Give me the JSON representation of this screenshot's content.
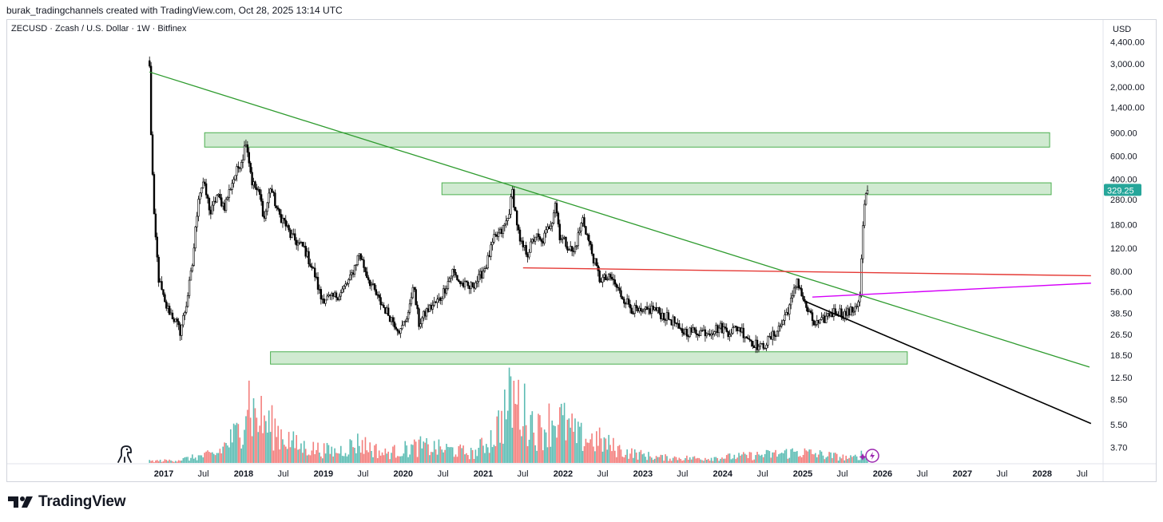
{
  "header": {
    "credit": "burak_tradingchannels created with TradingView.com, Oct 28, 2025 13:14 UTC"
  },
  "symbol": {
    "description": "ZECUSD · Zcash / U.S. Dollar · 1W · Bitfinex"
  },
  "branding": {
    "logo_text": "TradingView"
  },
  "colors": {
    "up": "#26a69a",
    "down": "#ef5350",
    "candle": "#000000",
    "zone_fill": "#c8e6c9",
    "zone_stroke": "#4caf50",
    "downtrend_line": "#2e9b2e",
    "support_line": "#e53935",
    "magenta_line": "#d500f9",
    "black_line": "#000000",
    "last_price_bg": "#26a69a",
    "grid": "#f0f3fa"
  },
  "chart_data": {
    "type": "candlestick",
    "symbol": "ZECUSD",
    "timeframe": "1W",
    "exchange": "Bitfinex",
    "currency": "USD",
    "scale": "log",
    "grid": false,
    "last_price": "329.25",
    "y_tick_labels": [
      "4,400.00",
      "3,000.00",
      "2,000.00",
      "1,400.00",
      "900.00",
      "600.00",
      "400.00",
      "280.00",
      "180.00",
      "120.00",
      "80.00",
      "56.00",
      "38.50",
      "26.50",
      "18.50",
      "12.50",
      "8.50",
      "5.50",
      "3.70"
    ],
    "x_tick_labels": [
      "2017",
      "Jul",
      "2018",
      "Jul",
      "2019",
      "Jul",
      "2020",
      "Jul",
      "2021",
      "Jul",
      "2022",
      "Jul",
      "2023",
      "Jul",
      "2024",
      "Jul",
      "2025",
      "Jul",
      "2026",
      "Jul",
      "2027",
      "Jul",
      "2028",
      "Jul"
    ],
    "x_ticks": [
      "2017-01",
      "2017-07",
      "2018-01",
      "2018-07",
      "2019-01",
      "2019-07",
      "2020-01",
      "2020-07",
      "2021-01",
      "2021-07",
      "2022-01",
      "2022-07",
      "2023-01",
      "2023-07",
      "2024-01",
      "2024-07",
      "2025-01",
      "2025-07",
      "2026-01",
      "2026-07",
      "2027-01",
      "2027-07",
      "2028-01",
      "2028-07"
    ],
    "price_path": [
      [
        "2016-10-28",
        2800
      ],
      [
        "2016-11-04",
        900
      ],
      [
        "2016-11-18",
        200
      ],
      [
        "2016-12-09",
        70
      ],
      [
        "2017-01-06",
        45
      ],
      [
        "2017-02-17",
        35
      ],
      [
        "2017-03-17",
        28
      ],
      [
        "2017-04-14",
        45
      ],
      [
        "2017-05-12",
        90
      ],
      [
        "2017-06-09",
        300
      ],
      [
        "2017-06-30",
        380
      ],
      [
        "2017-08-04",
        220
      ],
      [
        "2017-09-01",
        300
      ],
      [
        "2017-10-06",
        250
      ],
      [
        "2017-11-10",
        380
      ],
      [
        "2017-12-29",
        600
      ],
      [
        "2018-01-12",
        800
      ],
      [
        "2018-02-09",
        380
      ],
      [
        "2018-03-16",
        300
      ],
      [
        "2018-04-06",
        200
      ],
      [
        "2018-05-04",
        350
      ],
      [
        "2018-06-08",
        220
      ],
      [
        "2018-07-06",
        190
      ],
      [
        "2018-08-03",
        150
      ],
      [
        "2018-09-07",
        130
      ],
      [
        "2018-10-05",
        120
      ],
      [
        "2018-11-23",
        75
      ],
      [
        "2018-12-21",
        50
      ],
      [
        "2019-02-08",
        50
      ],
      [
        "2019-03-22",
        55
      ],
      [
        "2019-05-03",
        70
      ],
      [
        "2019-06-14",
        110
      ],
      [
        "2019-07-19",
        75
      ],
      [
        "2019-09-06",
        50
      ],
      [
        "2019-11-08",
        35
      ],
      [
        "2019-12-20",
        28
      ],
      [
        "2020-01-31",
        42
      ],
      [
        "2020-02-14",
        65
      ],
      [
        "2020-03-13",
        32
      ],
      [
        "2020-04-17",
        40
      ],
      [
        "2020-05-22",
        45
      ],
      [
        "2020-06-19",
        50
      ],
      [
        "2020-08-14",
        80
      ],
      [
        "2020-09-18",
        65
      ],
      [
        "2020-10-30",
        60
      ],
      [
        "2020-12-11",
        70
      ],
      [
        "2021-01-15",
        90
      ],
      [
        "2021-02-19",
        140
      ],
      [
        "2021-03-26",
        160
      ],
      [
        "2021-04-23",
        200
      ],
      [
        "2021-05-14",
        320
      ],
      [
        "2021-06-18",
        130
      ],
      [
        "2021-07-23",
        110
      ],
      [
        "2021-08-27",
        150
      ],
      [
        "2021-09-24",
        130
      ],
      [
        "2021-11-12",
        200
      ],
      [
        "2021-11-26",
        270
      ],
      [
        "2021-12-17",
        150
      ],
      [
        "2022-02-18",
        110
      ],
      [
        "2022-04-01",
        200
      ],
      [
        "2022-05-13",
        110
      ],
      [
        "2022-06-17",
        70
      ],
      [
        "2022-08-12",
        70
      ],
      [
        "2022-09-16",
        55
      ],
      [
        "2022-11-11",
        42
      ],
      [
        "2022-12-23",
        38
      ],
      [
        "2023-02-17",
        42
      ],
      [
        "2023-03-24",
        38
      ],
      [
        "2023-05-26",
        33
      ],
      [
        "2023-06-16",
        28
      ],
      [
        "2023-08-25",
        28
      ],
      [
        "2023-10-27",
        28
      ],
      [
        "2023-12-22",
        30
      ],
      [
        "2024-01-26",
        28
      ],
      [
        "2024-03-15",
        30
      ],
      [
        "2024-04-26",
        25
      ],
      [
        "2024-06-21",
        21
      ],
      [
        "2024-08-09",
        25
      ],
      [
        "2024-09-27",
        32
      ],
      [
        "2024-11-15",
        50
      ],
      [
        "2024-12-06",
        70
      ],
      [
        "2025-01-10",
        45
      ],
      [
        "2025-02-21",
        32
      ],
      [
        "2025-03-21",
        32
      ],
      [
        "2025-05-02",
        38
      ],
      [
        "2025-06-06",
        40
      ],
      [
        "2025-07-11",
        38
      ],
      [
        "2025-08-15",
        40
      ],
      [
        "2025-09-19",
        50
      ],
      [
        "2025-09-26",
        100
      ],
      [
        "2025-10-03",
        170
      ],
      [
        "2025-10-10",
        250
      ],
      [
        "2025-10-17",
        300
      ],
      [
        "2025-10-24",
        329.25
      ]
    ],
    "volume_path": [
      [
        "2016-10-28",
        2
      ],
      [
        "2017-03-03",
        3
      ],
      [
        "2017-09-01",
        10
      ],
      [
        "2017-12-15",
        35
      ],
      [
        "2018-01-19",
        80
      ],
      [
        "2018-02-09",
        55
      ],
      [
        "2018-06-01",
        35
      ],
      [
        "2018-09-07",
        18
      ],
      [
        "2019-03-01",
        12
      ],
      [
        "2019-06-14",
        22
      ],
      [
        "2019-10-04",
        10
      ],
      [
        "2020-03-13",
        18
      ],
      [
        "2020-08-14",
        14
      ],
      [
        "2020-11-20",
        10
      ],
      [
        "2021-02-19",
        30
      ],
      [
        "2021-05-14",
        72
      ],
      [
        "2021-09-10",
        35
      ],
      [
        "2021-12-03",
        50
      ],
      [
        "2022-03-11",
        28
      ],
      [
        "2022-06-17",
        24
      ],
      [
        "2022-10-07",
        12
      ],
      [
        "2023-03-10",
        6
      ],
      [
        "2023-09-15",
        5
      ],
      [
        "2024-03-15",
        7
      ],
      [
        "2024-09-20",
        10
      ],
      [
        "2024-12-06",
        12
      ],
      [
        "2025-05-02",
        8
      ],
      [
        "2025-08-15",
        5
      ],
      [
        "2025-09-26",
        9
      ],
      [
        "2025-10-24",
        6
      ]
    ],
    "zones": [
      {
        "x": [
          "2017-07-07",
          "2028-02-04"
        ],
        "y": [
          700,
          900
        ]
      },
      {
        "x": [
          "2020-06-26",
          "2028-02-11"
        ],
        "y": [
          305,
          375
        ]
      },
      {
        "x": [
          "2018-05-04",
          "2026-04-24"
        ],
        "y": [
          15.8,
          19.6
        ]
      }
    ],
    "lines": [
      {
        "kind": "downtrend",
        "x": [
          "2016-10-28",
          "2028-08-04"
        ],
        "y": [
          2600,
          15
        ]
      },
      {
        "kind": "support",
        "x": [
          "2021-07-02",
          "2028-08-11"
        ],
        "y": [
          85,
          74
        ]
      },
      {
        "kind": "magenta",
        "x": [
          "2025-02-14",
          "2028-08-11"
        ],
        "y": [
          51,
          65
        ]
      },
      {
        "kind": "black",
        "x": [
          "2025-01-03",
          "2028-08-11"
        ],
        "y": [
          48,
          5.6
        ]
      }
    ]
  }
}
